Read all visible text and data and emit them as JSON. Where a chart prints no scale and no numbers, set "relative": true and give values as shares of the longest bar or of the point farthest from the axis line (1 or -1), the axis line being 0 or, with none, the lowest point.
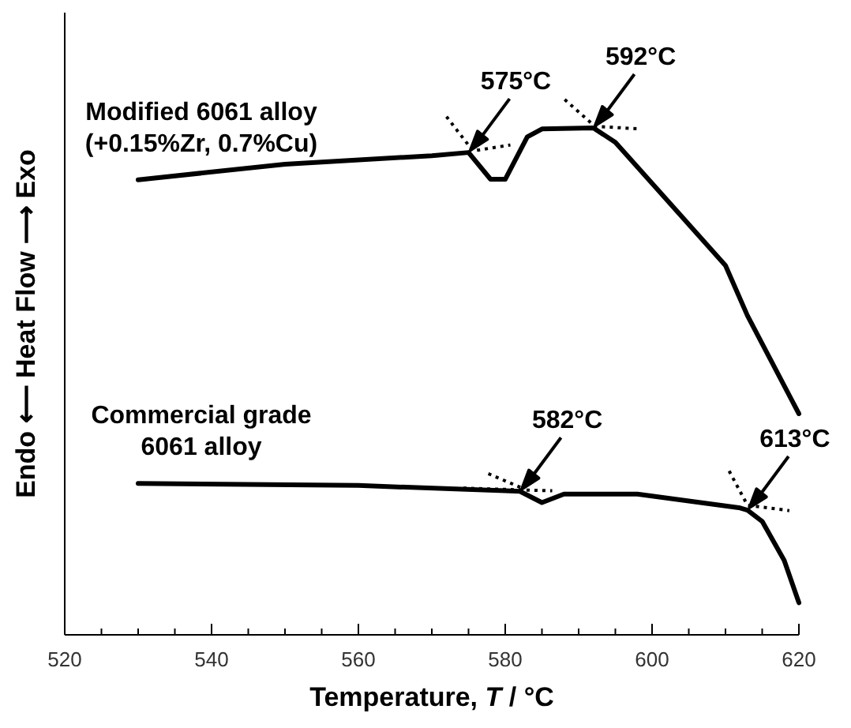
{
  "chart_data": {
    "type": "line",
    "xlabel": "Temperature, T / °C",
    "ylabel": "Endo ⟵ Heat Flow ⟶ Exo",
    "relative": true,
    "tick_labels": "x",
    "xlim": [
      520,
      620
    ],
    "xticks": [
      520,
      {
        "value": 525,
        "label": null
      },
      540,
      {
        "value": 535,
        "label": null
      },
      {
        "value": 530,
        "label": null
      },
      {
        "value": 545,
        "label": null
      },
      560,
      {
        "value": 550,
        "label": null
      },
      {
        "value": 555,
        "label": null
      },
      {
        "value": 565,
        "label": null
      },
      580,
      {
        "value": 570,
        "label": null
      },
      {
        "value": 575,
        "label": null
      },
      {
        "value": 585,
        "label": null
      },
      600,
      {
        "value": 590,
        "label": null
      },
      {
        "value": 595,
        "label": null
      },
      {
        "value": 605,
        "label": null
      },
      620,
      {
        "value": 610,
        "label": null
      },
      {
        "value": 615,
        "label": null
      }
    ],
    "series": [
      {
        "name": "Modified 6061 alloy\n(+0.15%Zr, 0.7%Cu)",
        "color": "#000000",
        "line_style": "solid",
        "x": [
          530,
          550,
          570,
          575,
          578,
          580,
          583,
          585,
          592,
          595,
          610,
          613,
          620
        ],
        "values": [
          0.85,
          0.879,
          0.895,
          0.901,
          0.851,
          0.851,
          0.93,
          0.945,
          0.947,
          0.92,
          0.69,
          0.596,
          0.413
        ]
      },
      {
        "name": "Commercial grade\n6061 alloy",
        "color": "#000000",
        "line_style": "solid",
        "x": [
          530,
          560,
          580,
          582,
          585,
          588,
          598,
          612,
          613,
          615,
          618,
          620
        ],
        "values": [
          0.283,
          0.279,
          0.269,
          0.268,
          0.247,
          0.263,
          0.263,
          0.237,
          0.233,
          0.212,
          0.139,
          0.06
        ]
      },
      {
        "color": "#000000",
        "line_style": "dotted",
        "x": [
          572,
          575.6,
          580.7
        ],
        "values": [
          0.968,
          0.904,
          0.915
        ]
      },
      {
        "color": "#000000",
        "line_style": "dotted",
        "x": [
          588.1,
          592.2,
          598.3
        ],
        "values": [
          1,
          0.95,
          0.945
        ]
      },
      {
        "color": "#000000",
        "line_style": "dotted",
        "x": [
          577.7,
          582.5,
          null,
          574.3,
          586.4
        ],
        "values": [
          0.301,
          0.273,
          null,
          0.274,
          0.269
        ]
      },
      {
        "color": "#000000",
        "line_style": "dotted",
        "x": [
          610.5,
          613,
          618.7
        ],
        "values": [
          0.306,
          0.242,
          0.232
        ]
      }
    ],
    "annotations": [
      {
        "text": "575°C",
        "x": 575,
        "y": 0.901
      },
      {
        "text": "592°C",
        "x": 592,
        "y": 0.947
      },
      {
        "text": "582°C",
        "x": 582,
        "y": 0.268
      },
      {
        "text": "613°C",
        "x": 613,
        "y": 0.233
      }
    ]
  }
}
